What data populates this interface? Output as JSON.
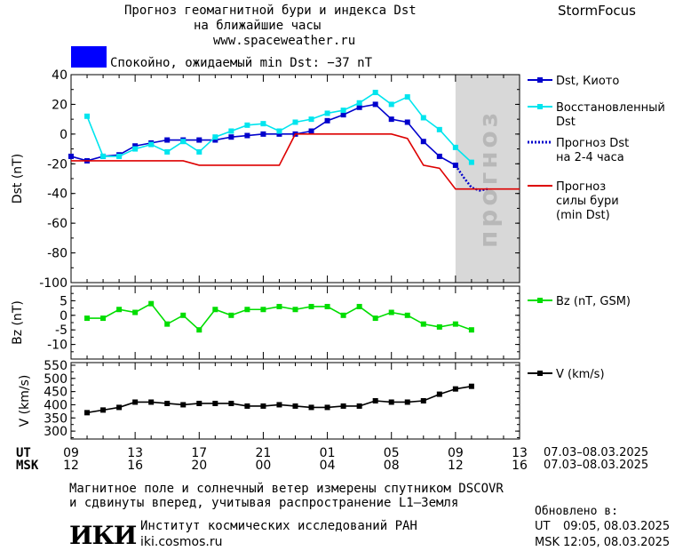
{
  "header": {
    "title_line1": "Прогноз геомагнитной бури и индекса Dst",
    "title_line2": "на ближайшие часы",
    "website": "www.spaceweather.ru",
    "brand": "StormFocus",
    "status_text": "Спокойно, ожидаемый min Dst: −37 nT",
    "status_color": "#0000ff"
  },
  "footer": {
    "ut_label": "UT",
    "msk_label": "MSK",
    "ut_range": "07.03–08.03.2025",
    "msk_range": "07.03–08.03.2025",
    "note_line1": "Магнитное поле и солнечный ветер измерены спутником DSCOVR",
    "note_line2": "и сдвинуты вперед, учитывая распространение L1–Земля",
    "institute_logo": "ИКИ",
    "institute_name": "Институт космических исследований РАН",
    "institute_site": "iki.cosmos.ru",
    "updated_label": "Обновлено в:",
    "updated_ut_label": "UT",
    "updated_ut": "09:05, 08.03.2025",
    "updated_msk_label": "MSK",
    "updated_msk": "12:05, 08.03.2025"
  },
  "chart_data": [
    {
      "type": "line",
      "panel": "dst",
      "ylabel": "Dst (nT)",
      "ylim": [
        -100,
        40
      ],
      "yticks": [
        40,
        20,
        0,
        -20,
        -40,
        -60,
        -80,
        -100
      ],
      "xlim": [
        9,
        37
      ],
      "x_ticks_ut": [
        "09",
        "13",
        "17",
        "21",
        "01",
        "05",
        "09",
        "13"
      ],
      "x_ticks_msk": [
        "12",
        "16",
        "20",
        "00",
        "04",
        "08",
        "12",
        "16"
      ],
      "forecast_zone_label": "прогноз",
      "forecast_zone_start": 33,
      "series": [
        {
          "name": "Dst, Киото",
          "color": "#0000cc",
          "marker": "square",
          "x": [
            9,
            10,
            11,
            12,
            13,
            14,
            15,
            16,
            17,
            18,
            19,
            20,
            21,
            22,
            23,
            24,
            25,
            26,
            27,
            28,
            29,
            30,
            31,
            32,
            33
          ],
          "y": [
            -15,
            -18,
            -15,
            -14,
            -8,
            -6,
            -4,
            -4,
            -4,
            -4,
            -2,
            -1,
            0,
            0,
            0,
            2,
            9,
            13,
            18,
            20,
            10,
            8,
            -5,
            -15,
            -21
          ]
        },
        {
          "name": "Восстановленный Dst",
          "color": "#00e5ee",
          "marker": "square",
          "x": [
            10,
            11,
            12,
            13,
            14,
            15,
            16,
            17,
            18,
            19,
            20,
            21,
            22,
            23,
            24,
            25,
            26,
            27,
            28,
            29,
            30,
            31,
            32,
            33,
            34
          ],
          "y": [
            12,
            -15,
            -15,
            -10,
            -7,
            -12,
            -5,
            -12,
            -2,
            2,
            6,
            7,
            2,
            8,
            10,
            14,
            16,
            21,
            28,
            20,
            25,
            11,
            3,
            -9,
            -19
          ]
        },
        {
          "name": "Прогноз Dst на 2-4 часа",
          "color": "#0000cc",
          "style": "dotted",
          "x": [
            33,
            33.5,
            34,
            34.5,
            35
          ],
          "y": [
            -21,
            -29,
            -36,
            -38,
            -37
          ]
        },
        {
          "name": "Прогноз силы бури (min Dst)",
          "color": "#dd0000",
          "style": "step",
          "x": [
            9,
            16,
            17,
            22,
            23,
            29,
            30,
            31,
            32,
            33,
            37
          ],
          "y": [
            -18,
            -18,
            -21,
            -21,
            0,
            0,
            -3,
            -21,
            -23,
            -37,
            -37
          ]
        }
      ]
    },
    {
      "type": "line",
      "panel": "bz",
      "ylabel": "Bz (nT)",
      "ylim": [
        -15,
        10
      ],
      "yticks": [
        5,
        0,
        -5,
        -10
      ],
      "series": [
        {
          "name": "Bz (nT, GSM)",
          "color": "#00dd00",
          "marker": "square",
          "x": [
            10,
            11,
            12,
            13,
            14,
            15,
            16,
            17,
            18,
            19,
            20,
            21,
            22,
            23,
            24,
            25,
            26,
            27,
            28,
            29,
            30,
            31,
            32,
            33,
            34
          ],
          "y": [
            -1,
            -1,
            2,
            1,
            4,
            -3,
            0,
            -5,
            2,
            0,
            2,
            2,
            3,
            2,
            3,
            3,
            0,
            3,
            -1,
            1,
            0,
            -3,
            -4,
            -3,
            -5
          ]
        }
      ]
    },
    {
      "type": "line",
      "panel": "v",
      "ylabel": "V (km/s)",
      "ylim": [
        270,
        560
      ],
      "yticks": [
        550,
        500,
        450,
        400,
        350,
        300
      ],
      "series": [
        {
          "name": "V (km/s)",
          "color": "#000000",
          "marker": "square",
          "x": [
            10,
            11,
            12,
            13,
            14,
            15,
            16,
            17,
            18,
            19,
            20,
            21,
            22,
            23,
            24,
            25,
            26,
            27,
            28,
            29,
            30,
            31,
            32,
            33,
            34
          ],
          "y": [
            370,
            380,
            390,
            410,
            410,
            405,
            400,
            405,
            405,
            405,
            395,
            395,
            400,
            395,
            390,
            390,
            395,
            395,
            415,
            410,
            410,
            415,
            440,
            460,
            470
          ]
        }
      ]
    }
  ]
}
